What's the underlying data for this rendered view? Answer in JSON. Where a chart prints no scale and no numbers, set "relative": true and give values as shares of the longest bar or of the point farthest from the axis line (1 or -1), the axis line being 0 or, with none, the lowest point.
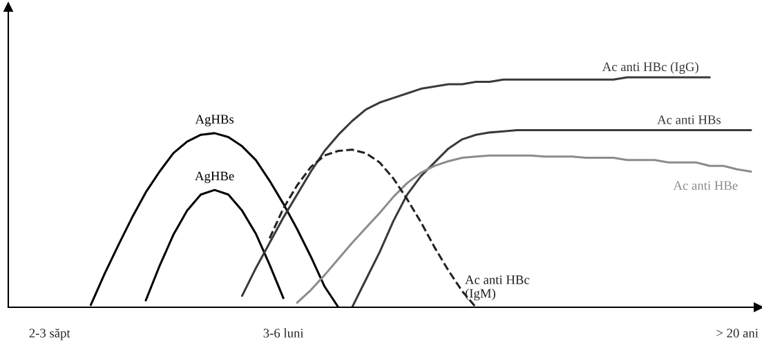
{
  "chart_data": {
    "type": "line",
    "relative": true,
    "legend": false,
    "grid": false,
    "marker": "none",
    "categories": [
      null,
      null,
      null,
      "2-3 săpt",
      null,
      null,
      null,
      null,
      null,
      null,
      null,
      null,
      null,
      null,
      null,
      null,
      null,
      null,
      null,
      null,
      "3-6 luni",
      null,
      null,
      null,
      null,
      null,
      null,
      null,
      null,
      null,
      null,
      null,
      null,
      null,
      null,
      null,
      null,
      null,
      null,
      null,
      null,
      null,
      null,
      null,
      null,
      null,
      null,
      null,
      null,
      null,
      null,
      null,
      null,
      "> 20 ani",
      null
    ],
    "series": [
      {
        "name": "AgHBs",
        "color": "#000000",
        "line_style": "solid",
        "values": [
          null,
          null,
          null,
          null,
          null,
          null,
          0.01,
          0.145,
          0.27,
          0.39,
          0.5,
          0.59,
          0.67,
          0.72,
          0.75,
          0.757,
          0.74,
          0.7,
          0.64,
          0.55,
          0.45,
          0.34,
          0.22,
          0.09,
          0.0,
          null,
          null,
          null,
          null,
          null,
          null,
          null,
          null,
          null,
          null,
          null,
          null,
          null,
          null,
          null,
          null,
          null,
          null,
          null,
          null,
          null,
          null,
          null,
          null,
          null,
          null,
          null,
          null,
          null,
          null
        ]
      },
      {
        "name": "AgHBe",
        "color": "#000000",
        "line_style": "solid",
        "values": [
          null,
          null,
          null,
          null,
          null,
          null,
          null,
          null,
          null,
          null,
          0.03,
          0.18,
          0.315,
          0.42,
          0.49,
          0.51,
          0.49,
          0.42,
          0.32,
          0.185,
          0.04,
          null,
          null,
          null,
          null,
          null,
          null,
          null,
          null,
          null,
          null,
          null,
          null,
          null,
          null,
          null,
          null,
          null,
          null,
          null,
          null,
          null,
          null,
          null,
          null,
          null,
          null,
          null,
          null,
          null,
          null,
          null,
          null,
          null,
          null
        ]
      },
      {
        "name": "Ac anti HBc (IgG)",
        "color": "#3a3a3a",
        "line_style": "solid",
        "values": [
          null,
          null,
          null,
          null,
          null,
          null,
          null,
          null,
          null,
          null,
          null,
          null,
          null,
          null,
          null,
          null,
          null,
          0.05,
          0.17,
          0.28,
          0.39,
          0.49,
          0.59,
          0.68,
          0.75,
          0.81,
          0.86,
          0.89,
          0.91,
          0.93,
          0.95,
          0.96,
          0.97,
          0.97,
          0.98,
          0.98,
          0.99,
          0.99,
          0.99,
          0.99,
          0.99,
          0.99,
          0.99,
          0.99,
          0.99,
          1.0,
          1.0,
          1.0,
          1.0,
          1.0,
          1.0,
          1.0,
          null,
          null,
          null
        ]
      },
      {
        "name": "Ac anti HBs",
        "color": "#3a3a3a",
        "line_style": "solid",
        "values": [
          null,
          null,
          null,
          null,
          null,
          null,
          null,
          null,
          null,
          null,
          null,
          null,
          null,
          null,
          null,
          null,
          null,
          null,
          null,
          null,
          null,
          null,
          null,
          null,
          null,
          0.0,
          0.12,
          0.24,
          0.375,
          0.49,
          0.57,
          0.63,
          0.69,
          0.73,
          0.75,
          0.76,
          0.765,
          0.77,
          0.77,
          0.77,
          0.77,
          0.77,
          0.77,
          0.77,
          0.77,
          0.77,
          0.77,
          0.77,
          0.77,
          0.77,
          0.77,
          0.77,
          0.77,
          0.77,
          0.77
        ]
      },
      {
        "name": "Ac anti HBe",
        "color": "#8c8c8c",
        "line_style": "solid",
        "values": [
          null,
          null,
          null,
          null,
          null,
          null,
          null,
          null,
          null,
          null,
          null,
          null,
          null,
          null,
          null,
          null,
          null,
          null,
          null,
          null,
          null,
          0.02,
          0.075,
          0.14,
          0.21,
          0.28,
          0.345,
          0.41,
          0.48,
          0.54,
          0.585,
          0.615,
          0.635,
          0.65,
          0.655,
          0.66,
          0.66,
          0.66,
          0.66,
          0.655,
          0.655,
          0.655,
          0.65,
          0.65,
          0.65,
          0.64,
          0.64,
          0.64,
          0.63,
          0.63,
          0.63,
          0.615,
          0.615,
          0.6,
          0.59
        ]
      },
      {
        "name": "Ac anti HBc\n(IgM)",
        "color": "#222222",
        "line_style": "dashed",
        "values": [
          null,
          null,
          null,
          null,
          null,
          null,
          null,
          null,
          null,
          null,
          null,
          null,
          null,
          null,
          null,
          null,
          null,
          null,
          null,
          0.3,
          0.43,
          0.53,
          0.61,
          0.66,
          0.68,
          0.685,
          0.67,
          0.63,
          0.56,
          0.47,
          0.37,
          0.26,
          0.16,
          0.07,
          0.0,
          null,
          null,
          null,
          null,
          null,
          null,
          null,
          null,
          null,
          null,
          null,
          null,
          null,
          null,
          null,
          null,
          null,
          null,
          null,
          null
        ]
      }
    ]
  }
}
